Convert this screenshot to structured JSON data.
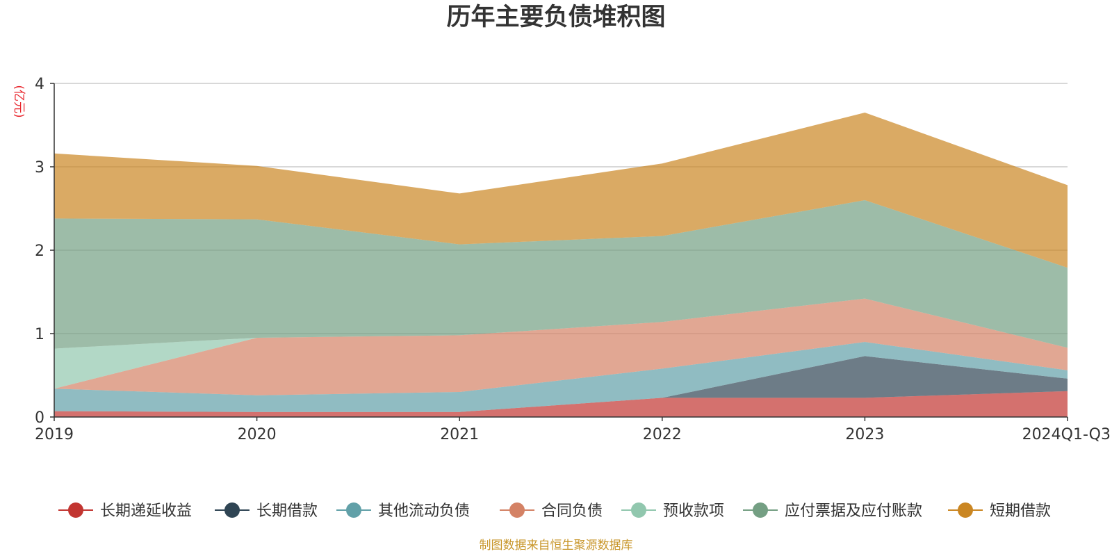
{
  "chart_data": {
    "type": "area",
    "stacked": true,
    "title": "历年主要负债堆积图",
    "unit_label": "(亿元)",
    "source": "制图数据来自恒生聚源数据库",
    "x": [
      "2019",
      "2020",
      "2021",
      "2022",
      "2023",
      "2024Q1-Q3"
    ],
    "ylim": [
      0,
      4
    ],
    "yticks": [
      0,
      1,
      2,
      3,
      4
    ],
    "grid": true,
    "legend_position": "bottom",
    "series": [
      {
        "name": "长期递延收益",
        "color": "#c23531",
        "values": [
          0.07,
          0.06,
          0.06,
          0.23,
          0.23,
          0.31
        ]
      },
      {
        "name": "长期借款",
        "color": "#2f4554",
        "values": [
          0.0,
          0.0,
          0.0,
          0.0,
          0.5,
          0.15
        ]
      },
      {
        "name": "其他流动负债",
        "color": "#61a0a8",
        "values": [
          0.27,
          0.2,
          0.24,
          0.35,
          0.17,
          0.1
        ]
      },
      {
        "name": "合同负债",
        "color": "#d48265",
        "values": [
          0.0,
          0.69,
          0.68,
          0.56,
          0.52,
          0.27
        ]
      },
      {
        "name": "预收款项",
        "color": "#91c7ae",
        "values": [
          0.48,
          0.0,
          0.0,
          0.0,
          0.0,
          0.0
        ]
      },
      {
        "name": "应付票据及应付账款",
        "color": "#749f83",
        "values": [
          1.56,
          1.42,
          1.09,
          1.03,
          1.18,
          0.96
        ]
      },
      {
        "name": "短期借款",
        "color": "#ca8622",
        "values": [
          0.78,
          0.64,
          0.61,
          0.87,
          1.05,
          0.99
        ]
      }
    ]
  }
}
